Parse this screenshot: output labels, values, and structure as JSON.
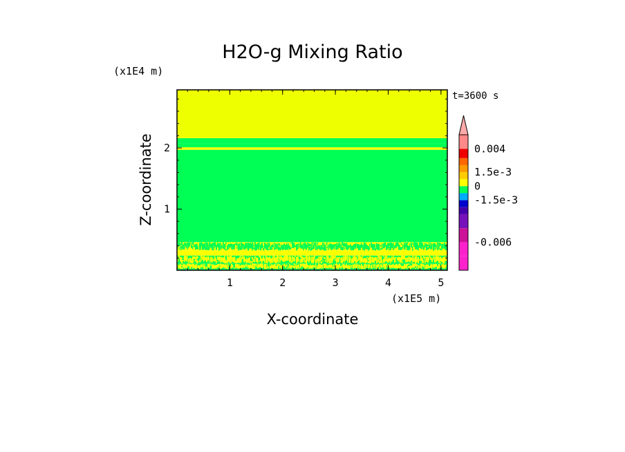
{
  "chart_data": {
    "type": "heatmap",
    "title": "H2O-g Mixing Ratio",
    "xlabel": "X-coordinate",
    "ylabel": "Z-coordinate",
    "x_unit": "(x1E5 m)",
    "y_unit": "(x1E4 m)",
    "time_label": "t=3600 s",
    "xlim": [
      0,
      5.12
    ],
    "ylim": [
      0,
      2.95
    ],
    "x_ticks": [
      {
        "value": 1,
        "label": "1"
      },
      {
        "value": 2,
        "label": "2"
      },
      {
        "value": 3,
        "label": "3"
      },
      {
        "value": 4,
        "label": "4"
      },
      {
        "value": 5,
        "label": "5"
      }
    ],
    "y_ticks": [
      {
        "value": 1,
        "label": "1"
      },
      {
        "value": 2,
        "label": "2"
      }
    ],
    "layers": [
      {
        "z_bottom": 0.0,
        "z_top": 0.02,
        "color": "#00ff55"
      },
      {
        "z_bottom": 0.02,
        "z_top": 0.11,
        "color": "#00ff55",
        "mottled_with": "#ffff00"
      },
      {
        "z_bottom": 0.11,
        "z_top": 0.24,
        "color": "#00ff55",
        "mottled_with": "#ffff00"
      },
      {
        "z_bottom": 0.24,
        "z_top": 0.32,
        "color": "#ffff00"
      },
      {
        "z_bottom": 0.32,
        "z_top": 0.46,
        "color": "#ffff00",
        "mottled_with": "#00ff55"
      },
      {
        "z_bottom": 0.46,
        "z_top": 1.97,
        "color": "#00ff55"
      },
      {
        "z_bottom": 1.97,
        "z_top": 2.01,
        "color": "#ffff00"
      },
      {
        "z_bottom": 2.01,
        "z_top": 2.07,
        "color": "#00ff55"
      },
      {
        "z_bottom": 2.07,
        "z_top": 2.16,
        "color": "#00ff55"
      },
      {
        "z_bottom": 2.16,
        "z_top": 2.95,
        "color": "#eeff00"
      }
    ],
    "colorbar": {
      "vmin": -0.009,
      "vmax": 0.0055,
      "levels": [
        {
          "from": -0.009,
          "to": -0.0075,
          "color": "#ff22cc"
        },
        {
          "from": -0.0075,
          "to": -0.006,
          "color": "#ff22cc"
        },
        {
          "from": -0.006,
          "to": -0.0045,
          "color": "#cc1199"
        },
        {
          "from": -0.0045,
          "to": -0.003,
          "color": "#7711bb"
        },
        {
          "from": -0.003,
          "to": -0.00225,
          "color": "#4400aa"
        },
        {
          "from": -0.00225,
          "to": -0.0015,
          "color": "#0000cc"
        },
        {
          "from": -0.0015,
          "to": -0.00075,
          "color": "#00aaff"
        },
        {
          "from": -0.00075,
          "to": 0,
          "color": "#00ff55"
        },
        {
          "from": 0,
          "to": 0.00075,
          "color": "#ffff00"
        },
        {
          "from": 0.00075,
          "to": 0.0015,
          "color": "#ffcc00"
        },
        {
          "from": 0.0015,
          "to": 0.00225,
          "color": "#ff9900"
        },
        {
          "from": 0.00225,
          "to": 0.003,
          "color": "#ff6600"
        },
        {
          "from": 0.003,
          "to": 0.004,
          "color": "#ee0000"
        },
        {
          "from": 0.004,
          "to": 0.0055,
          "color": "#ff8888"
        }
      ],
      "tick_labels": [
        {
          "value": 0.004,
          "label": "0.004"
        },
        {
          "value": 0.0015,
          "label": "1.5e-3"
        },
        {
          "value": 0,
          "label": "0"
        },
        {
          "value": -0.0015,
          "label": "-1.5e-3"
        },
        {
          "value": -0.006,
          "label": "-0.006"
        }
      ],
      "extend_top_color": "#ffaaaa"
    }
  }
}
